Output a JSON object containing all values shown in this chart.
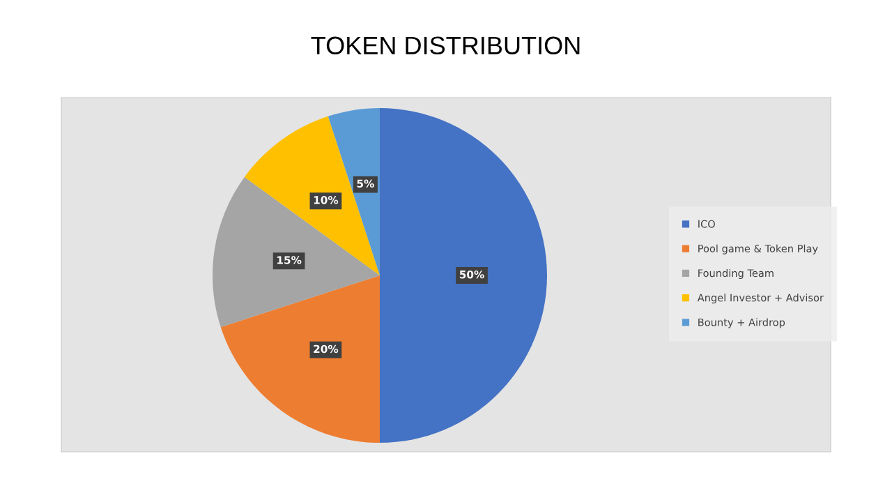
{
  "chart_data": {
    "type": "pie",
    "title": "TOKEN DISTRIBUTION",
    "categories": [
      "ICO",
      "Pool game & Token Play",
      "Founding Team",
      "Angel Investor + Advisor",
      "Bounty + Airdrop"
    ],
    "values": [
      50,
      20,
      15,
      10,
      5
    ],
    "colors": [
      "#4472c4",
      "#ed7d31",
      "#a5a5a5",
      "#ffc000",
      "#5b9bd5"
    ],
    "value_labels": [
      "50%",
      "20%",
      "15%",
      "10%",
      "5%"
    ],
    "legend": "right"
  }
}
